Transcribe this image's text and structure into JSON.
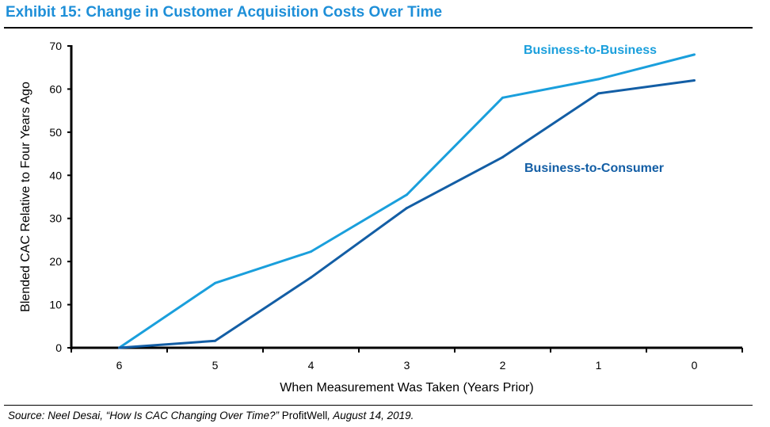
{
  "chart_data": {
    "type": "line",
    "title": "Exhibit 15: Change in Customer Acquisition Costs Over Time",
    "xlabel": "When Measurement Was Taken (Years Prior)",
    "ylabel": "Blended CAC Relative to Four Years Ago",
    "categories": [
      "6",
      "5",
      "4",
      "3",
      "2",
      "1",
      "0"
    ],
    "yticks": [
      "0",
      "10",
      "20",
      "30",
      "40",
      "50",
      "60",
      "70"
    ],
    "ylim": [
      0,
      70
    ],
    "grid": false,
    "series": [
      {
        "name": "Business-to-Business",
        "color": "#1a9fdc",
        "values": [
          0,
          15,
          22.3,
          35.5,
          58,
          62.3,
          68
        ]
      },
      {
        "name": "Business-to-Consumer",
        "color": "#135ea5",
        "values": [
          0,
          1.6,
          16.3,
          32.4,
          44.2,
          59,
          62
        ]
      }
    ]
  },
  "source": {
    "prefix": "Source: Neel Desai, “How Is CAC Changing Over Time?” ",
    "publisher": "ProfitWell",
    "suffix": ", August 14, 2019."
  }
}
